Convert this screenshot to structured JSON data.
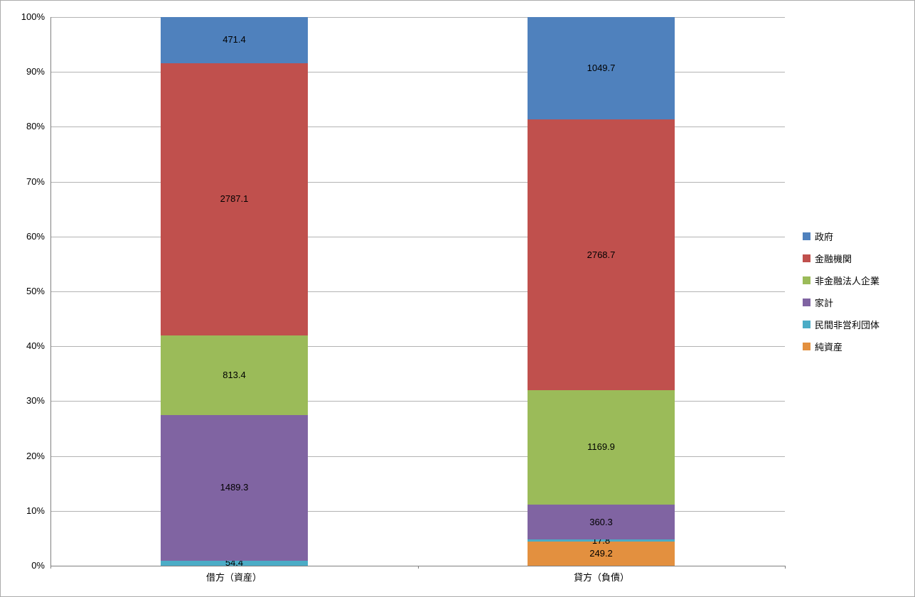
{
  "chart_data": {
    "type": "bar",
    "subtype": "stacked-100-percent",
    "title": "",
    "xlabel": "",
    "ylabel": "",
    "categories": [
      "借方（資産）",
      "貸方（負債）"
    ],
    "series": [
      {
        "name": "純資産",
        "color": "#E3903F",
        "values": [
          0,
          249.2
        ]
      },
      {
        "name": "民間非営利団体",
        "color": "#4BACC6",
        "values": [
          54.4,
          17.8
        ]
      },
      {
        "name": "家計",
        "color": "#8064A2",
        "values": [
          1489.3,
          360.3
        ]
      },
      {
        "name": "非金融法人企業",
        "color": "#9BBB59",
        "values": [
          813.4,
          1169.9
        ]
      },
      {
        "name": "金融機関",
        "color": "#C0504D",
        "values": [
          2787.1,
          2768.7
        ]
      },
      {
        "name": "政府",
        "color": "#4F81BD",
        "values": [
          471.4,
          1049.7
        ]
      }
    ],
    "legend": [
      "政府",
      "金融機関",
      "非金融法人企業",
      "家計",
      "民間非営利団体",
      "純資産"
    ],
    "legend_position": "right",
    "y_ticks": [
      "100%",
      "90%",
      "80%",
      "70%",
      "60%",
      "50%",
      "40%",
      "30%",
      "20%",
      "10%",
      "0%"
    ],
    "ylim": [
      0,
      100
    ],
    "grid": true
  }
}
